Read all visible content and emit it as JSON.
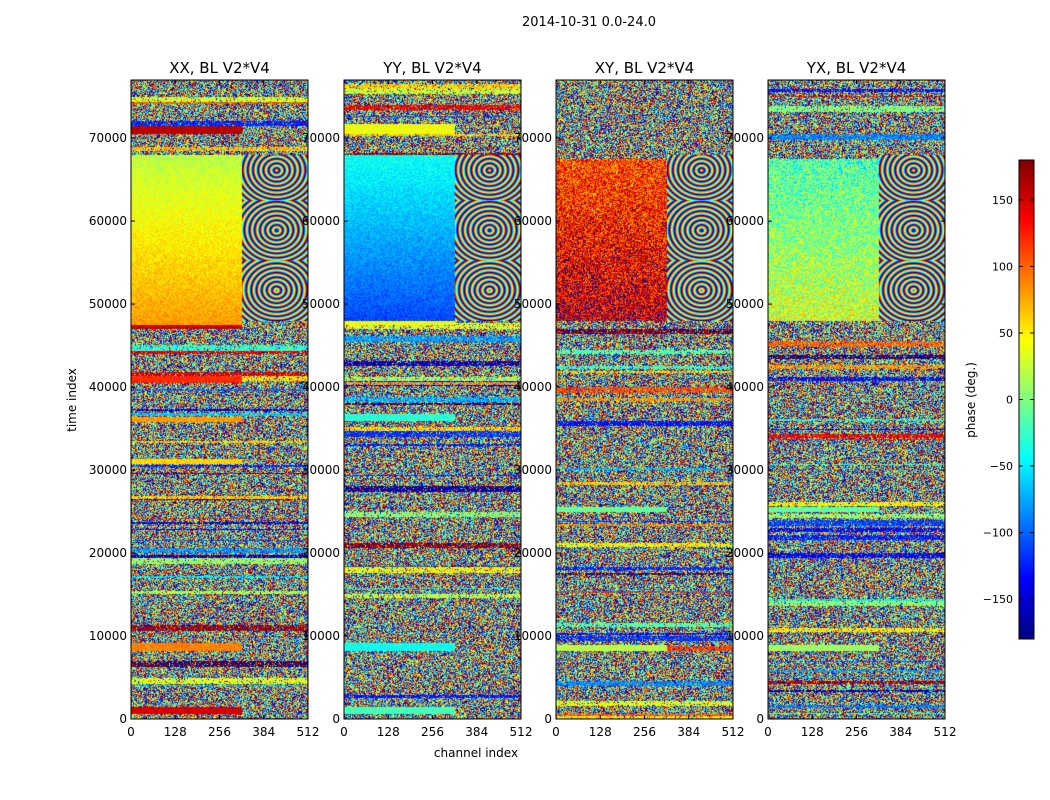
{
  "chart_data": {
    "type": "heatmap",
    "suptitle": "2014-10-31 0.0-24.0",
    "xlabel": "channel index",
    "ylabel": "time index",
    "xlim": [
      0,
      512
    ],
    "ylim": [
      0,
      77000
    ],
    "x_ticks": [
      0,
      128,
      256,
      384,
      512
    ],
    "y_ticks": [
      0,
      10000,
      20000,
      30000,
      40000,
      50000,
      60000,
      70000
    ],
    "colorbar": {
      "label": "phase (deg.)",
      "range": [
        -180,
        180
      ],
      "ticks": [
        -150,
        -100,
        -50,
        0,
        50,
        100,
        150
      ],
      "tick_labels": [
        "−150",
        "−100",
        "−50",
        "0",
        "50",
        "100",
        "150"
      ],
      "colormap": "jet"
    },
    "panels": [
      {
        "title": "XX, BL V2*V4",
        "regions": [
          {
            "t_from": 47500,
            "t_to": 68000,
            "ch_from": 0,
            "ch_to": 320,
            "phase_start": 80,
            "phase_end": 20,
            "noise": 18
          }
        ],
        "bands": [
          {
            "t_from": 47000,
            "t_to": 48200,
            "phase": 150
          },
          {
            "t_from": 70600,
            "t_to": 71500,
            "phase": 160
          },
          {
            "t_from": 40600,
            "t_to": 41400,
            "phase": 120
          },
          {
            "t_from": 8200,
            "t_to": 9200,
            "phase": 90
          },
          {
            "t_from": 700,
            "t_to": 1500,
            "phase": 150
          },
          {
            "t_from": 35800,
            "t_to": 36500,
            "phase": 80
          },
          {
            "t_from": 30800,
            "t_to": 31400,
            "phase": 60
          }
        ]
      },
      {
        "title": "YY, BL V2*V4",
        "regions": [
          {
            "t_from": 48000,
            "t_to": 68000,
            "ch_from": 0,
            "ch_to": 320,
            "phase_start": -110,
            "phase_end": -40,
            "noise": 18
          }
        ],
        "bands": [
          {
            "t_from": 70600,
            "t_to": 71800,
            "phase": 40
          },
          {
            "t_from": 47500,
            "t_to": 48500,
            "phase": 40
          },
          {
            "t_from": 8200,
            "t_to": 9200,
            "phase": -40
          },
          {
            "t_from": 36000,
            "t_to": 36800,
            "phase": -30
          },
          {
            "t_from": 700,
            "t_to": 1500,
            "phase": -20
          }
        ]
      },
      {
        "title": "XY, BL V2*V4",
        "regions": [
          {
            "t_from": 48000,
            "t_to": 67500,
            "ch_from": 0,
            "ch_to": 320,
            "phase_start": 150,
            "phase_end": 110,
            "noise": 60
          }
        ],
        "bands": [
          {
            "t_from": 8200,
            "t_to": 9000,
            "phase": 20
          },
          {
            "t_from": 25000,
            "t_to": 25600,
            "phase": -10
          }
        ]
      },
      {
        "title": "YX, BL V2*V4",
        "regions": [
          {
            "t_from": 48000,
            "t_to": 67500,
            "ch_from": 0,
            "ch_to": 320,
            "phase_start": 30,
            "phase_end": -20,
            "noise": 55
          }
        ],
        "bands": [
          {
            "t_from": 25000,
            "t_to": 25600,
            "phase": -10
          },
          {
            "t_from": 8200,
            "t_to": 9000,
            "phase": 10
          }
        ]
      }
    ]
  }
}
